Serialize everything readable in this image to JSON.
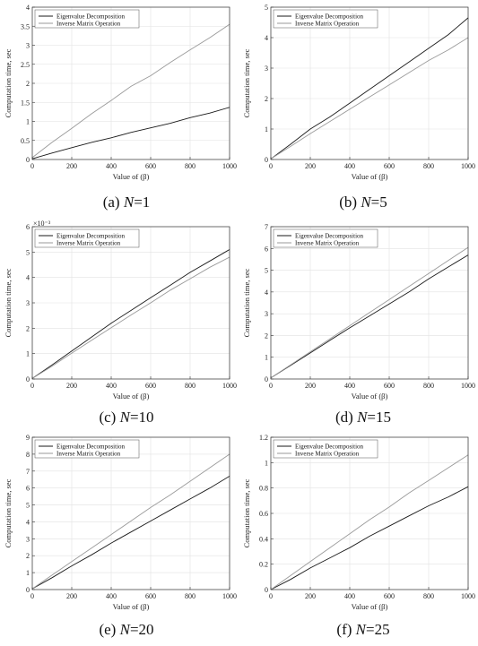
{
  "chart_data": [
    {
      "type": "line",
      "panel": "a",
      "caption_prefix": "(a) ",
      "caption_n": "N",
      "caption_value": "=1",
      "xlabel": "Value of (β)",
      "ylabel": "Computation time, sec",
      "xlim": [
        0,
        1000
      ],
      "ylim": [
        0,
        4
      ],
      "xticks": [
        0,
        200,
        400,
        600,
        800,
        1000
      ],
      "yticks": [
        0,
        0.5,
        1,
        1.5,
        2,
        2.5,
        3,
        3.5,
        4
      ],
      "exponent_label": "",
      "grid": true,
      "legend": "top-left",
      "series": [
        {
          "name": "Eigenvalue Decomposition",
          "color": "#1a1a1a",
          "x": [
            0,
            100,
            200,
            300,
            400,
            500,
            600,
            700,
            800,
            900,
            1000
          ],
          "y": [
            0.02,
            0.17,
            0.31,
            0.45,
            0.57,
            0.71,
            0.83,
            0.95,
            1.1,
            1.22,
            1.37
          ]
        },
        {
          "name": "Inverse Matrix Operation",
          "color": "#9a9a9a",
          "x": [
            0,
            100,
            200,
            300,
            400,
            500,
            600,
            700,
            800,
            900,
            1000
          ],
          "y": [
            0.05,
            0.45,
            0.82,
            1.2,
            1.55,
            1.92,
            2.2,
            2.55,
            2.88,
            3.2,
            3.55
          ]
        }
      ]
    },
    {
      "type": "line",
      "panel": "b",
      "caption_prefix": "(b) ",
      "caption_n": "N",
      "caption_value": "=5",
      "xlabel": "Value of (β)",
      "ylabel": "Computation time, sec",
      "xlim": [
        0,
        1000
      ],
      "ylim": [
        0,
        5
      ],
      "xticks": [
        0,
        200,
        400,
        600,
        800,
        1000
      ],
      "yticks": [
        0,
        1,
        2,
        3,
        4,
        5
      ],
      "exponent_label": "",
      "grid": true,
      "legend": "top-left",
      "series": [
        {
          "name": "Eigenvalue Decomposition",
          "color": "#1a1a1a",
          "x": [
            0,
            100,
            200,
            300,
            400,
            500,
            600,
            700,
            800,
            900,
            1000
          ],
          "y": [
            0.02,
            0.5,
            1.0,
            1.4,
            1.85,
            2.3,
            2.75,
            3.2,
            3.65,
            4.1,
            4.65
          ]
        },
        {
          "name": "Inverse Matrix Operation",
          "color": "#9a9a9a",
          "x": [
            0,
            100,
            200,
            300,
            400,
            500,
            600,
            700,
            800,
            900,
            1000
          ],
          "y": [
            0.02,
            0.43,
            0.85,
            1.25,
            1.65,
            2.05,
            2.45,
            2.85,
            3.25,
            3.6,
            4.0
          ]
        }
      ]
    },
    {
      "type": "line",
      "panel": "c",
      "caption_prefix": "(c) ",
      "caption_n": "N",
      "caption_value": "=10",
      "xlabel": "Value of (β)",
      "ylabel": "Computation time, sec",
      "xlim": [
        0,
        1000
      ],
      "ylim": [
        0,
        6
      ],
      "xticks": [
        0,
        200,
        400,
        600,
        800,
        1000
      ],
      "yticks": [
        0,
        1,
        2,
        3,
        4,
        5,
        6
      ],
      "exponent_label": "×10⁻³",
      "grid": true,
      "legend": "top-left",
      "series": [
        {
          "name": "Eigenvalue Decomposition",
          "color": "#1a1a1a",
          "x": [
            0,
            100,
            200,
            300,
            400,
            500,
            600,
            700,
            800,
            900,
            1000
          ],
          "y": [
            0.02,
            0.55,
            1.1,
            1.65,
            2.2,
            2.7,
            3.2,
            3.7,
            4.2,
            4.65,
            5.1
          ]
        },
        {
          "name": "Inverse Matrix Operation",
          "color": "#9a9a9a",
          "x": [
            0,
            100,
            200,
            300,
            400,
            500,
            600,
            700,
            800,
            900,
            1000
          ],
          "y": [
            0.02,
            0.5,
            1.02,
            1.52,
            2.02,
            2.52,
            3.0,
            3.5,
            3.95,
            4.4,
            4.8
          ]
        }
      ]
    },
    {
      "type": "line",
      "panel": "d",
      "caption_prefix": "(d) ",
      "caption_n": "N",
      "caption_value": "=15",
      "xlabel": "Value of (β)",
      "ylabel": "Computation time, sec",
      "xlim": [
        0,
        1000
      ],
      "ylim": [
        0,
        7
      ],
      "xticks": [
        0,
        200,
        400,
        600,
        800,
        1000
      ],
      "yticks": [
        0,
        1,
        2,
        3,
        4,
        5,
        6,
        7
      ],
      "exponent_label": "",
      "grid": true,
      "legend": "top-left",
      "series": [
        {
          "name": "Eigenvalue Decomposition",
          "color": "#1a1a1a",
          "x": [
            0,
            100,
            200,
            300,
            400,
            500,
            600,
            700,
            800,
            900,
            1000
          ],
          "y": [
            0.05,
            0.62,
            1.2,
            1.78,
            2.35,
            2.9,
            3.45,
            4.0,
            4.6,
            5.15,
            5.7
          ]
        },
        {
          "name": "Inverse Matrix Operation",
          "color": "#9a9a9a",
          "x": [
            0,
            100,
            200,
            300,
            400,
            500,
            600,
            700,
            800,
            900,
            1000
          ],
          "y": [
            0.05,
            0.65,
            1.25,
            1.85,
            2.45,
            3.05,
            3.65,
            4.25,
            4.85,
            5.45,
            6.05
          ]
        }
      ]
    },
    {
      "type": "line",
      "panel": "e",
      "caption_prefix": "(e) ",
      "caption_n": "N",
      "caption_value": "=20",
      "xlabel": "Value of (β)",
      "ylabel": "Computation time, sec",
      "xlim": [
        0,
        1000
      ],
      "ylim": [
        0,
        9
      ],
      "xticks": [
        0,
        200,
        400,
        600,
        800,
        1000
      ],
      "yticks": [
        0,
        1,
        2,
        3,
        4,
        5,
        6,
        7,
        8,
        9
      ],
      "exponent_label": "",
      "grid": true,
      "legend": "top-left",
      "series": [
        {
          "name": "Eigenvalue Decomposition",
          "color": "#1a1a1a",
          "x": [
            0,
            100,
            200,
            300,
            400,
            500,
            600,
            700,
            800,
            900,
            1000
          ],
          "y": [
            0.05,
            0.7,
            1.4,
            2.05,
            2.75,
            3.4,
            4.05,
            4.7,
            5.35,
            6.0,
            6.7
          ]
        },
        {
          "name": "Inverse Matrix Operation",
          "color": "#9a9a9a",
          "x": [
            0,
            100,
            200,
            300,
            400,
            500,
            600,
            700,
            800,
            900,
            1000
          ],
          "y": [
            0.05,
            0.85,
            1.65,
            2.45,
            3.25,
            4.05,
            4.85,
            5.6,
            6.4,
            7.2,
            8.0
          ]
        }
      ]
    },
    {
      "type": "line",
      "panel": "f",
      "caption_prefix": "(f) ",
      "caption_n": "N",
      "caption_value": "=25",
      "xlabel": "Value of (β)",
      "ylabel": "Computation time, sec",
      "xlim": [
        0,
        1000
      ],
      "ylim": [
        0,
        1.2
      ],
      "xticks": [
        0,
        200,
        400,
        600,
        800,
        1000
      ],
      "yticks": [
        0,
        0.2,
        0.4,
        0.6,
        0.8,
        1,
        1.2
      ],
      "exponent_label": "",
      "grid": true,
      "legend": "top-left",
      "series": [
        {
          "name": "Eigenvalue Decomposition",
          "color": "#1a1a1a",
          "x": [
            0,
            100,
            200,
            300,
            400,
            500,
            600,
            700,
            800,
            900,
            1000
          ],
          "y": [
            0.0,
            0.08,
            0.17,
            0.25,
            0.33,
            0.42,
            0.5,
            0.58,
            0.66,
            0.73,
            0.81
          ]
        },
        {
          "name": "Inverse Matrix Operation",
          "color": "#9a9a9a",
          "x": [
            0,
            100,
            200,
            300,
            400,
            500,
            600,
            700,
            800,
            900,
            1000
          ],
          "y": [
            0.0,
            0.11,
            0.22,
            0.33,
            0.44,
            0.55,
            0.65,
            0.76,
            0.86,
            0.96,
            1.06
          ]
        }
      ]
    }
  ]
}
